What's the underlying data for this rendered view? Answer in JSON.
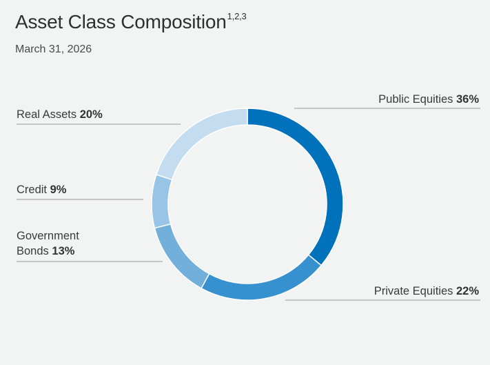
{
  "title": "Asset Class Composition",
  "title_superscript": "1,2,3",
  "subtitle": "March 31, 2026",
  "chart_data": {
    "type": "pie",
    "variant": "donut",
    "title": "Asset Class Composition",
    "categories": [
      "Public Equities",
      "Private Equities",
      "Government Bonds",
      "Credit",
      "Real Assets"
    ],
    "values": [
      36,
      22,
      13,
      9,
      20
    ],
    "value_labels": [
      "36%",
      "22%",
      "13%",
      "9%",
      "20%"
    ],
    "colors": [
      "#0072bb",
      "#3891cf",
      "#72b0db",
      "#98c5e5",
      "#c3dcef"
    ],
    "start_angle": "12 o'clock, clockwise",
    "legend_placement": "callout labels"
  },
  "labels": {
    "public_equities": {
      "name": "Public Equities",
      "pct": "36%"
    },
    "private_equities": {
      "name": "Private Equities",
      "pct": "22%"
    },
    "government_bonds": {
      "name_line1": "Government",
      "name_line2": "Bonds",
      "pct": "13%"
    },
    "credit": {
      "name": "Credit",
      "pct": "9%"
    },
    "real_assets": {
      "name": "Real Assets",
      "pct": "20%"
    }
  }
}
